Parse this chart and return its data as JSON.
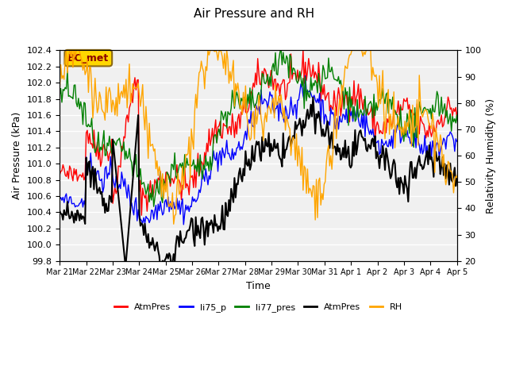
{
  "title": "Air Pressure and RH",
  "xlabel": "Time",
  "ylabel_left": "Air Pressure (kPa)",
  "ylabel_right": "Relativity Humidity (%)",
  "ylim_left": [
    99.8,
    102.4
  ],
  "ylim_right": [
    20,
    100
  ],
  "yticks_left": [
    99.8,
    100.0,
    100.2,
    100.4,
    100.6,
    100.8,
    101.0,
    101.2,
    101.4,
    101.6,
    101.8,
    102.0,
    102.2,
    102.4
  ],
  "yticks_right": [
    20,
    30,
    40,
    50,
    60,
    70,
    80,
    90,
    100
  ],
  "annotation_text": "BC_met",
  "annotation_color": "#8B0000",
  "annotation_bg": "#FFD700",
  "bg_color": "#E8E8E8",
  "legend_items": [
    {
      "label": "AtmPres",
      "color": "red",
      "style": "-"
    },
    {
      "label": "li75_p",
      "color": "blue",
      "style": "-"
    },
    {
      "label": "li77_pres",
      "color": "green",
      "style": "-"
    },
    {
      "label": "AtmPres",
      "color": "black",
      "style": "-"
    },
    {
      "label": "RH",
      "color": "orange",
      "style": "-"
    }
  ],
  "xtick_labels": [
    "Mar 21",
    "Mar 22",
    "Mar 23",
    "Mar 24",
    "Mar 25",
    "Mar 26",
    "Mar 27",
    "Mar 28",
    "Mar 29",
    "Mar 30",
    "Mar 31",
    "Apr 1",
    "Apr 2",
    "Apr 3",
    "Apr 4",
    "Apr 5"
  ],
  "n_days": 16
}
